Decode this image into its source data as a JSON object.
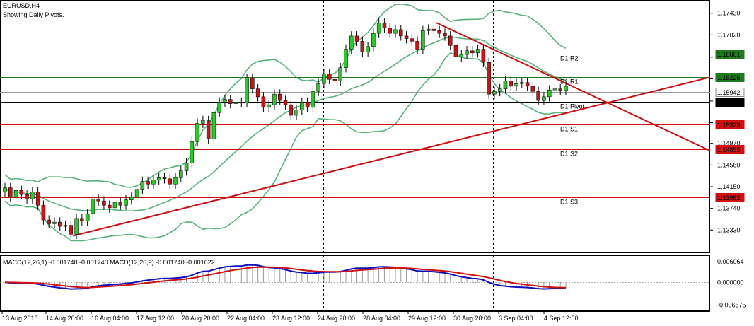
{
  "header": {
    "symbol": "EURUSD,H4",
    "subtitle": "Showing Daily Pivots."
  },
  "macd": {
    "label": "MACD(12,26,1) -0.001740 -0.001740 MACD(12,26,9) -0.001740 -0.001622"
  },
  "colors": {
    "up_candle": "#2ec52e",
    "down_candle": "#c81414",
    "bollinger": "#55b57a",
    "pivot_green": "#1e7a1e",
    "pivot_red": "#d01010",
    "pivot_black": "#000000",
    "trendline": "#d01010",
    "macd_blue": "#1010c0",
    "macd_red": "#d01010",
    "grid_dash": "#000000"
  },
  "chart_data": {
    "type": "candlestick",
    "ylim": [
      1.13,
      1.176
    ],
    "price_ticks": [
      "1.17430",
      "1.17020",
      "1.16600",
      "1.16190",
      "1.15770",
      "1.15360",
      "1.14970",
      "1.14560",
      "1.14150",
      "1.13740",
      "1.13330"
    ],
    "time_labels": [
      "13 Aug 2018",
      "14 Aug 20:00",
      "16 Aug 04:00",
      "17 Aug 12:00",
      "20 Aug 20:00",
      "22 Aug 04:00",
      "23 Aug 12:00",
      "24 Aug 20:00",
      "28 Aug 04:00",
      "29 Aug 12:00",
      "30 Aug 20:00",
      "3 Sep 04:00",
      "4 Sep 12:00"
    ],
    "pivots": [
      {
        "label": "D1 R2",
        "price": 1.16661,
        "badge": "1.16661",
        "color": "green"
      },
      {
        "label": "D1 R1",
        "price": 1.16226,
        "badge": "1.16226",
        "color": "green"
      },
      {
        "label": "",
        "price": 1.15942,
        "badge": "1.15942",
        "color": "gray"
      },
      {
        "label": "D1 Pivot",
        "price": 1.15758,
        "badge": "1.15758",
        "color": "black"
      },
      {
        "label": "D1 S1",
        "price": 1.15323,
        "badge": "1.15323",
        "color": "red"
      },
      {
        "label": "D1 S2",
        "price": 1.14855,
        "badge": "1.14855",
        "color": "red"
      },
      {
        "label": "D1 S3",
        "price": 1.13952,
        "badge": "1.13952",
        "color": "red"
      }
    ],
    "candles_close": [
      1.1413,
      1.1395,
      1.1408,
      1.14,
      1.1392,
      1.1405,
      1.138,
      1.1352,
      1.1345,
      1.1348,
      1.134,
      1.1342,
      1.1325,
      1.1355,
      1.135,
      1.1364,
      1.1392,
      1.1388,
      1.138,
      1.1375,
      1.1385,
      1.138,
      1.139,
      1.1395,
      1.141,
      1.1425,
      1.142,
      1.1428,
      1.1432,
      1.143,
      1.142,
      1.1432,
      1.1445,
      1.146,
      1.15,
      1.1535,
      1.154,
      1.1505,
      1.1555,
      1.1575,
      1.158,
      1.1572,
      1.1575,
      1.1574,
      1.162,
      1.16,
      1.1585,
      1.1565,
      1.157,
      1.159,
      1.1578,
      1.157,
      1.155,
      1.156,
      1.1575,
      1.1565,
      1.1595,
      1.161,
      1.1628,
      1.1618,
      1.1615,
      1.164,
      1.1675,
      1.17,
      1.169,
      1.167,
      1.168,
      1.1705,
      1.1725,
      1.1715,
      1.1705,
      1.1712,
      1.17,
      1.1695,
      1.169,
      1.1675,
      1.171,
      1.1713,
      1.171,
      1.1705,
      1.17,
      1.1682,
      1.166,
      1.1665,
      1.1672,
      1.1668,
      1.1675,
      1.165,
      1.159,
      1.1595,
      1.16,
      1.1615,
      1.1605,
      1.161,
      1.1612,
      1.1605,
      1.1595,
      1.1578,
      1.1585,
      1.1598,
      1.16,
      1.1597,
      1.1605
    ]
  }
}
